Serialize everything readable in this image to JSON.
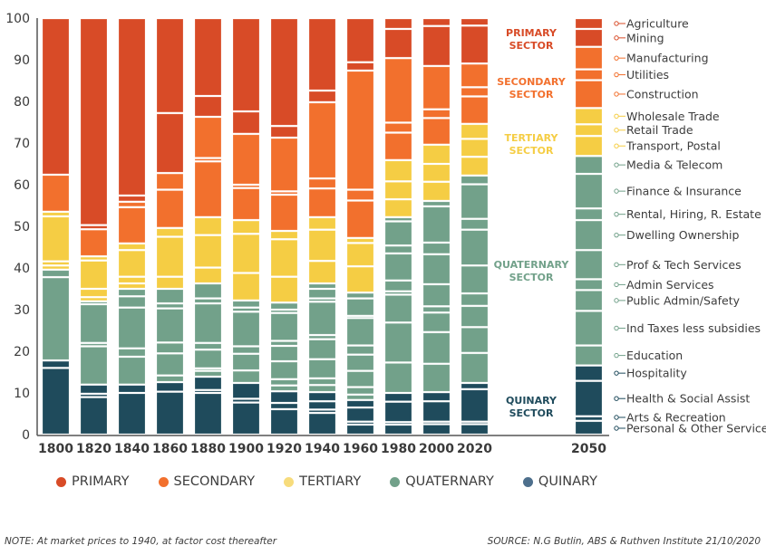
{
  "chart_data": {
    "type": "bar",
    "stacked": true,
    "title": "",
    "xlabel": "",
    "ylabel": "",
    "ylim": [
      0,
      100
    ],
    "yticks": [
      0,
      10,
      20,
      30,
      40,
      50,
      60,
      70,
      80,
      90,
      100
    ],
    "grid": false,
    "categories": [
      "1800",
      "1820",
      "1840",
      "1860",
      "1880",
      "1900",
      "1920",
      "1940",
      "1960",
      "1980",
      "2000",
      "2020",
      "2050"
    ],
    "sectors": [
      {
        "key": "primary",
        "name": "PRIMARY",
        "label_lines": [
          "PRIMARY",
          "SECTOR"
        ],
        "color": "#d84b27"
      },
      {
        "key": "secondary",
        "name": "SECONDARY",
        "label_lines": [
          "SECONDARY",
          "SECTOR"
        ],
        "color": "#f2702d"
      },
      {
        "key": "tertiary",
        "name": "TERTIARY",
        "label_lines": [
          "TERTIARY",
          "SECTOR"
        ],
        "color": "#f5cd44"
      },
      {
        "key": "quaternary",
        "name": "QUATERNARY",
        "label_lines": [
          "QUATERNARY",
          "SECTOR"
        ],
        "color": "#72a18a"
      },
      {
        "key": "quinary",
        "name": "QUINARY",
        "label_lines": [
          "QUINARY",
          "SECTOR"
        ],
        "color": "#1f4b5c"
      }
    ],
    "legend_colors": {
      "primary": "#d84b27",
      "secondary": "#f2702d",
      "tertiary": "#f7dc7c",
      "quaternary": "#72a18a",
      "quinary": "#4d6f8c"
    },
    "industries": [
      {
        "name": "Agriculture",
        "sector": "primary"
      },
      {
        "name": "Mining",
        "sector": "primary"
      },
      {
        "name": "Manufacturing",
        "sector": "secondary"
      },
      {
        "name": "Utilities",
        "sector": "secondary"
      },
      {
        "name": "Construction",
        "sector": "secondary"
      },
      {
        "name": "Wholesale Trade",
        "sector": "tertiary"
      },
      {
        "name": "Retail Trade",
        "sector": "tertiary"
      },
      {
        "name": "Transport, Postal",
        "sector": "tertiary"
      },
      {
        "name": "Media & Telecom",
        "sector": "quaternary"
      },
      {
        "name": "Finance & Insurance",
        "sector": "quaternary"
      },
      {
        "name": "Rental, Hiring, R. Estate",
        "sector": "quaternary"
      },
      {
        "name": "Dwelling Ownership",
        "sector": "quaternary"
      },
      {
        "name": "Prof & Tech Services",
        "sector": "quaternary"
      },
      {
        "name": "Admin Services",
        "sector": "quaternary"
      },
      {
        "name": "Public Admin/Safety",
        "sector": "quaternary"
      },
      {
        "name": "Ind Taxes less subsidies",
        "sector": "quaternary"
      },
      {
        "name": "Education",
        "sector": "quaternary"
      },
      {
        "name": "Hospitality",
        "sector": "quinary"
      },
      {
        "name": "Health & Social Assist",
        "sector": "quinary"
      },
      {
        "name": "Arts & Recreation",
        "sector": "quinary"
      },
      {
        "name": "Personal & Other Services",
        "sector": "quinary"
      }
    ],
    "sector_totals": {
      "1800": {
        "primary": 37.6,
        "secondary": 8.9,
        "tertiary": 13.9,
        "quaternary": 21.8,
        "quinary": 17.8
      },
      "1820": {
        "primary": 50.7,
        "secondary": 6.5,
        "tertiary": 10.8,
        "quaternary": 20.0,
        "quinary": 12.0
      },
      "1840": {
        "primary": 44.1,
        "secondary": 10.0,
        "tertiary": 10.9,
        "quaternary": 23.0,
        "quinary": 12.0
      },
      "1860": {
        "primary": 37.2,
        "secondary": 13.2,
        "tertiary": 14.6,
        "quaternary": 22.4,
        "quinary": 12.6
      },
      "1880": {
        "primary": 23.7,
        "secondary": 24.1,
        "tertiary": 15.9,
        "quaternary": 22.4,
        "quinary": 13.9
      },
      "1900": {
        "primary": 27.8,
        "secondary": 20.7,
        "tertiary": 19.3,
        "quaternary": 19.8,
        "quinary": 12.4
      },
      "1920": {
        "primary": 28.7,
        "secondary": 22.4,
        "tertiary": 17.2,
        "quaternary": 21.3,
        "quinary": 10.4
      },
      "1940": {
        "primary": 20.2,
        "secondary": 27.6,
        "tertiary": 15.9,
        "quaternary": 26.1,
        "quinary": 10.2
      },
      "1960": {
        "primary": 12.6,
        "secondary": 40.2,
        "tertiary": 13.1,
        "quaternary": 25.8,
        "quinary": 8.3
      },
      "1980": {
        "primary": 9.6,
        "secondary": 24.5,
        "tertiary": 13.7,
        "quaternary": 42.2,
        "quinary": 10.0
      },
      "2000": {
        "primary": 11.5,
        "secondary": 18.9,
        "tertiary": 13.5,
        "quaternary": 45.9,
        "quinary": 10.2
      },
      "2020": {
        "primary": 10.9,
        "secondary": 14.5,
        "tertiary": 12.4,
        "quaternary": 49.8,
        "quinary": 12.4
      },
      "2050": {
        "primary": 6.9,
        "secondary": 14.7,
        "tertiary": 11.5,
        "quaternary": 50.4,
        "quinary": 16.6
      }
    },
    "segments_top_down": {
      "1800": [
        [
          "primary",
          37.6
        ],
        [
          "primary",
          0.0
        ],
        [
          "secondary",
          8.9
        ],
        [
          "tertiary",
          0.0
        ],
        [
          "tertiary",
          1.1
        ],
        [
          "tertiary",
          10.8
        ],
        [
          "tertiary",
          1.0
        ],
        [
          "tertiary",
          1.0
        ],
        [
          "quaternary",
          1.8
        ],
        [
          "quaternary",
          20.0
        ],
        [
          "quinary",
          1.8
        ],
        [
          "quinary",
          16.0
        ]
      ],
      "1820": [
        [
          "primary",
          49.7
        ],
        [
          "primary",
          1.0
        ],
        [
          "secondary",
          6.5
        ],
        [
          "tertiary",
          1.0
        ],
        [
          "tertiary",
          6.8
        ],
        [
          "tertiary",
          2.0
        ],
        [
          "tertiary",
          1.0
        ],
        [
          "quaternary",
          0.7
        ],
        [
          "quaternary",
          9.3
        ],
        [
          "quaternary",
          0.8
        ],
        [
          "quaternary",
          9.2
        ],
        [
          "quinary",
          2.2
        ],
        [
          "quinary",
          0.8
        ],
        [
          "quinary",
          9.0
        ]
      ],
      "1840": [
        [
          "primary",
          42.6
        ],
        [
          "primary",
          1.5
        ],
        [
          "secondary",
          1.3
        ],
        [
          "secondary",
          8.7
        ],
        [
          "tertiary",
          1.6
        ],
        [
          "tertiary",
          6.4
        ],
        [
          "tertiary",
          1.6
        ],
        [
          "tertiary",
          1.3
        ],
        [
          "quaternary",
          1.8
        ],
        [
          "quaternary",
          2.7
        ],
        [
          "quaternary",
          9.8
        ],
        [
          "quaternary",
          2.0
        ],
        [
          "quaternary",
          6.7
        ],
        [
          "quinary",
          2.0
        ],
        [
          "quinary",
          10.0
        ]
      ],
      "1860": [
        [
          "primary",
          22.8
        ],
        [
          "primary",
          14.4
        ],
        [
          "secondary",
          4.0
        ],
        [
          "secondary",
          9.2
        ],
        [
          "tertiary",
          2.1
        ],
        [
          "tertiary",
          9.6
        ],
        [
          "tertiary",
          2.9
        ],
        [
          "quaternary",
          3.5
        ],
        [
          "quaternary",
          1.2
        ],
        [
          "quaternary",
          8.2
        ],
        [
          "quaternary",
          2.6
        ],
        [
          "quaternary",
          5.3
        ],
        [
          "quaternary",
          1.6
        ],
        [
          "quinary",
          2.3
        ],
        [
          "quinary",
          10.3
        ]
      ],
      "1880": [
        [
          "primary",
          18.7
        ],
        [
          "primary",
          5.0
        ],
        [
          "secondary",
          9.9
        ],
        [
          "secondary",
          0.8
        ],
        [
          "secondary",
          13.4
        ],
        [
          "tertiary",
          4.3
        ],
        [
          "tertiary",
          7.8
        ],
        [
          "tertiary",
          3.8
        ],
        [
          "quaternary",
          3.6
        ],
        [
          "quaternary",
          1.2
        ],
        [
          "quaternary",
          9.5
        ],
        [
          "quaternary",
          1.6
        ],
        [
          "quaternary",
          4.5
        ],
        [
          "quaternary",
          0.6
        ],
        [
          "quaternary",
          1.4
        ],
        [
          "quinary",
          3.2
        ],
        [
          "quinary",
          0.7
        ],
        [
          "quinary",
          10.0
        ]
      ],
      "1900": [
        [
          "primary",
          22.4
        ],
        [
          "primary",
          5.4
        ],
        [
          "secondary",
          12.2
        ],
        [
          "secondary",
          0.8
        ],
        [
          "secondary",
          7.7
        ],
        [
          "tertiary",
          3.3
        ],
        [
          "tertiary",
          9.4
        ],
        [
          "tertiary",
          6.6
        ],
        [
          "quaternary",
          1.7
        ],
        [
          "quaternary",
          1.0
        ],
        [
          "quaternary",
          8.3
        ],
        [
          "quaternary",
          1.8
        ],
        [
          "quaternary",
          4.0
        ],
        [
          "quaternary",
          3.0
        ],
        [
          "quinary",
          3.8
        ],
        [
          "quinary",
          0.9
        ],
        [
          "quinary",
          7.7
        ]
      ],
      "1920": [
        [
          "primary",
          25.9
        ],
        [
          "primary",
          2.8
        ],
        [
          "secondary",
          12.9
        ],
        [
          "secondary",
          0.8
        ],
        [
          "secondary",
          8.7
        ],
        [
          "tertiary",
          2.0
        ],
        [
          "tertiary",
          9.0
        ],
        [
          "tertiary",
          6.2
        ],
        [
          "quaternary",
          1.7
        ],
        [
          "quaternary",
          0.8
        ],
        [
          "quaternary",
          6.7
        ],
        [
          "quaternary",
          1.2
        ],
        [
          "quaternary",
          3.7
        ],
        [
          "quaternary",
          4.3
        ],
        [
          "quaternary",
          1.5
        ],
        [
          "quaternary",
          1.4
        ],
        [
          "quinary",
          2.8
        ],
        [
          "quinary",
          1.5
        ],
        [
          "quinary",
          6.1
        ]
      ],
      "1940": [
        [
          "primary",
          17.4
        ],
        [
          "primary",
          2.8
        ],
        [
          "secondary",
          18.3
        ],
        [
          "secondary",
          2.4
        ],
        [
          "secondary",
          6.9
        ],
        [
          "tertiary",
          3.0
        ],
        [
          "tertiary",
          7.5
        ],
        [
          "tertiary",
          5.4
        ],
        [
          "quaternary",
          1.3
        ],
        [
          "quaternary",
          2.3
        ],
        [
          "quaternary",
          0.8
        ],
        [
          "quaternary",
          8.0
        ],
        [
          "quaternary",
          1.0
        ],
        [
          "quaternary",
          4.8
        ],
        [
          "quaternary",
          4.6
        ],
        [
          "quaternary",
          1.6
        ],
        [
          "quaternary",
          1.7
        ],
        [
          "quinary",
          2.2
        ],
        [
          "quinary",
          2.0
        ],
        [
          "quinary",
          0.8
        ],
        [
          "quinary",
          5.2
        ]
      ],
      "1960": [
        [
          "primary",
          10.6
        ],
        [
          "primary",
          2.0
        ],
        [
          "secondary",
          28.6
        ],
        [
          "secondary",
          2.6
        ],
        [
          "secondary",
          9.0
        ],
        [
          "tertiary",
          1.2
        ],
        [
          "tertiary",
          5.6
        ],
        [
          "tertiary",
          6.3
        ],
        [
          "quaternary",
          1.4
        ],
        [
          "quaternary",
          4.2
        ],
        [
          "quaternary",
          0.5
        ],
        [
          "quaternary",
          6.6
        ],
        [
          "quaternary",
          2.2
        ],
        [
          "quaternary",
          3.9
        ],
        [
          "quaternary",
          3.9
        ],
        [
          "quaternary",
          1.8
        ],
        [
          "quaternary",
          1.3
        ],
        [
          "quinary",
          1.8
        ],
        [
          "quinary",
          3.4
        ],
        [
          "quinary",
          0.7
        ],
        [
          "quinary",
          2.4
        ]
      ],
      "1980": [
        [
          "primary",
          2.6
        ],
        [
          "primary",
          7.0
        ],
        [
          "secondary",
          15.5
        ],
        [
          "secondary",
          2.4
        ],
        [
          "secondary",
          6.6
        ],
        [
          "tertiary",
          5.1
        ],
        [
          "tertiary",
          4.3
        ],
        [
          "tertiary",
          4.3
        ],
        [
          "quaternary",
          1.0
        ],
        [
          "quaternary",
          5.8
        ],
        [
          "quaternary",
          1.9
        ],
        [
          "quaternary",
          6.5
        ],
        [
          "quaternary",
          2.6
        ],
        [
          "quaternary",
          0.8
        ],
        [
          "quaternary",
          6.7
        ],
        [
          "quaternary",
          9.6
        ],
        [
          "quaternary",
          7.3
        ],
        [
          "quinary",
          2.1
        ],
        [
          "quinary",
          4.9
        ],
        [
          "quinary",
          0.6
        ],
        [
          "quinary",
          2.4
        ]
      ],
      "2000": [
        [
          "primary",
          1.9
        ],
        [
          "primary",
          9.6
        ],
        [
          "secondary",
          10.4
        ],
        [
          "secondary",
          2.1
        ],
        [
          "secondary",
          6.4
        ],
        [
          "tertiary",
          4.6
        ],
        [
          "tertiary",
          4.3
        ],
        [
          "tertiary",
          4.6
        ],
        [
          "quaternary",
          1.3
        ],
        [
          "quaternary",
          8.7
        ],
        [
          "quaternary",
          2.8
        ],
        [
          "quaternary",
          7.2
        ],
        [
          "quaternary",
          5.3
        ],
        [
          "quaternary",
          1.5
        ],
        [
          "quaternary",
          4.7
        ],
        [
          "quaternary",
          7.6
        ],
        [
          "quaternary",
          6.8
        ],
        [
          "quinary",
          2.2
        ],
        [
          "quinary",
          4.9
        ],
        [
          "quinary",
          0.6
        ],
        [
          "quinary",
          2.5
        ]
      ],
      "2020": [
        [
          "primary",
          1.8
        ],
        [
          "primary",
          9.1
        ],
        [
          "secondary",
          5.7
        ],
        [
          "secondary",
          2.2
        ],
        [
          "secondary",
          6.6
        ],
        [
          "tertiary",
          3.6
        ],
        [
          "tertiary",
          4.3
        ],
        [
          "tertiary",
          4.5
        ],
        [
          "quaternary",
          2.1
        ],
        [
          "quaternary",
          8.3
        ],
        [
          "quaternary",
          2.6
        ],
        [
          "quaternary",
          8.6
        ],
        [
          "quaternary",
          6.7
        ],
        [
          "quaternary",
          3.0
        ],
        [
          "quaternary",
          5.1
        ],
        [
          "quaternary",
          6.2
        ],
        [
          "quaternary",
          7.2
        ],
        [
          "quinary",
          1.5
        ],
        [
          "quinary",
          7.8
        ],
        [
          "quinary",
          0.6
        ],
        [
          "quinary",
          2.5
        ]
      ],
      "2050": [
        [
          "primary",
          2.6
        ],
        [
          "primary",
          4.3
        ],
        [
          "secondary",
          5.4
        ],
        [
          "secondary",
          2.6
        ],
        [
          "secondary",
          6.7
        ],
        [
          "tertiary",
          3.9
        ],
        [
          "tertiary",
          2.8
        ],
        [
          "tertiary",
          4.8
        ],
        [
          "quaternary",
          4.3
        ],
        [
          "quaternary",
          8.3
        ],
        [
          "quaternary",
          2.8
        ],
        [
          "quaternary",
          7.2
        ],
        [
          "quaternary",
          7.0
        ],
        [
          "quaternary",
          2.6
        ],
        [
          "quaternary",
          5.0
        ],
        [
          "quaternary",
          8.3
        ],
        [
          "quaternary",
          4.8
        ],
        [
          "quinary",
          3.7
        ],
        [
          "quinary",
          8.5
        ],
        [
          "quinary",
          1.1
        ],
        [
          "quinary",
          3.3
        ]
      ]
    }
  },
  "legend": {
    "items": [
      {
        "label": "PRIMARY",
        "key": "primary"
      },
      {
        "label": "SECONDARY",
        "key": "secondary"
      },
      {
        "label": "TERTIARY",
        "key": "tertiary"
      },
      {
        "label": "QUATERNARY",
        "key": "quaternary"
      },
      {
        "label": "QUINARY",
        "key": "quinary"
      }
    ]
  },
  "footer": {
    "note": "NOTE: At market prices to 1940, at factor cost thereafter",
    "source": "SOURCE: N.G Butlin, ABS & Ruthven Institute 21/10/2020"
  }
}
